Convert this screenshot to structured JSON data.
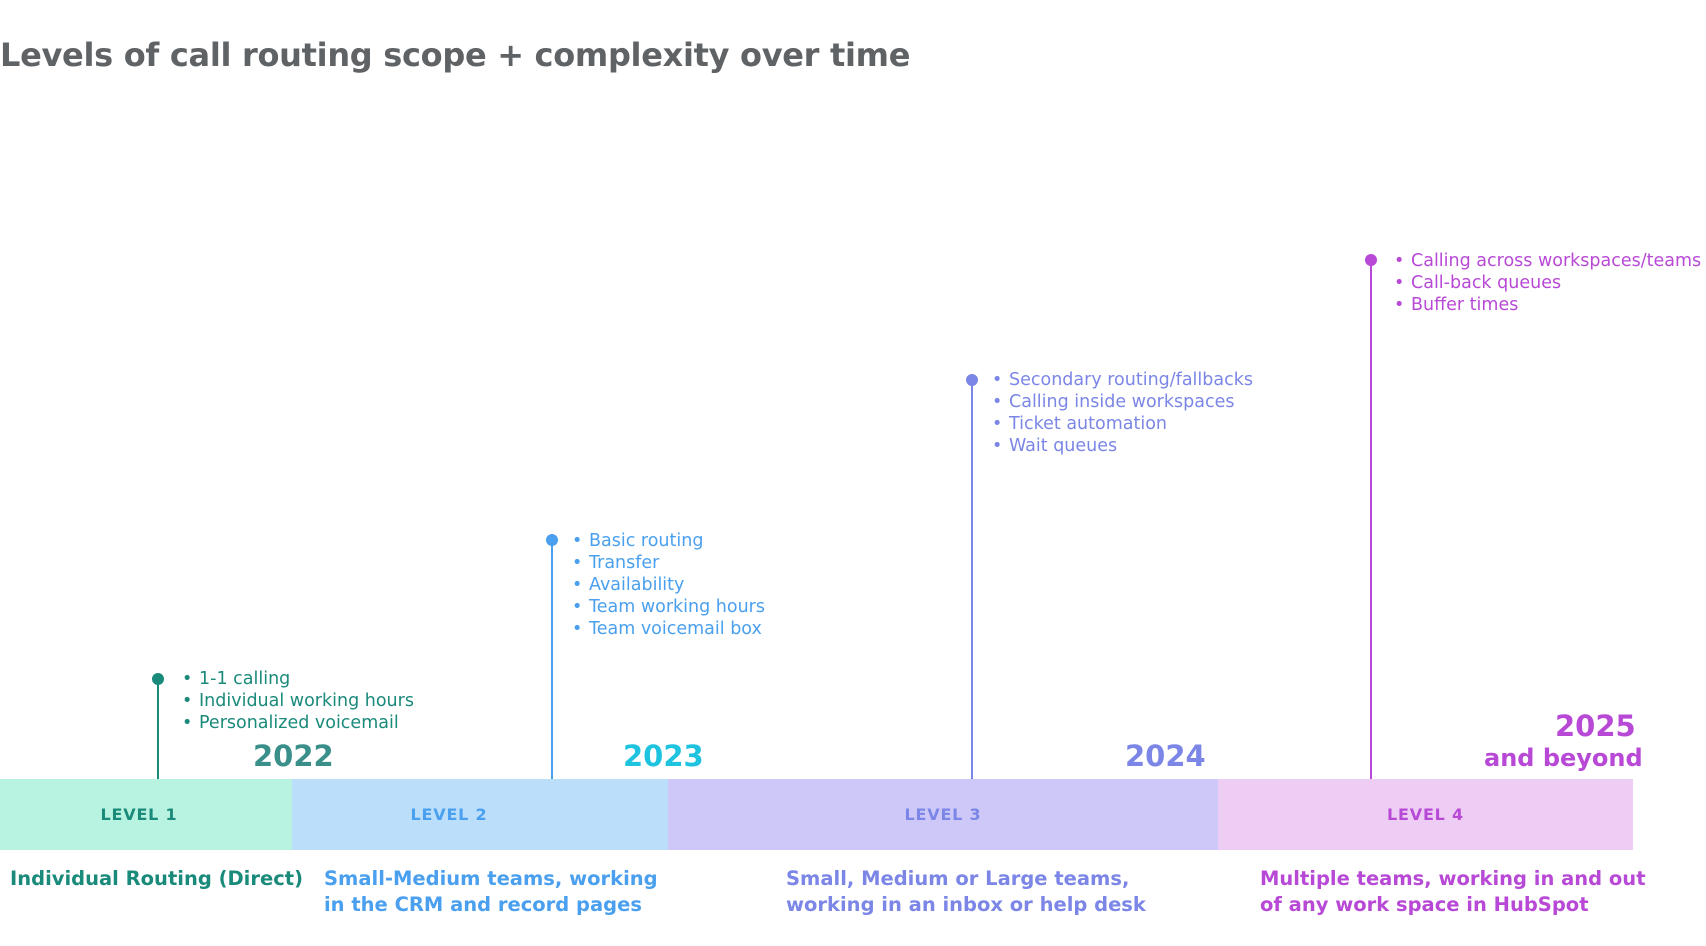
{
  "title": "Levels of call routing scope + complexity over time",
  "colors": {
    "level1": "#1a8a7a",
    "level2": "#4aa0ee",
    "level3": "#7b86e6",
    "level4": "#b849d6",
    "year2022": "#3a8f8a",
    "year2023": "#1ec3e0",
    "band1": "#b8f2e0",
    "band2": "#bbdefb",
    "band3": "#cec8f8",
    "band4": "#eecdf5"
  },
  "milestones": [
    {
      "features": [
        "1-1 calling",
        "Individual working hours",
        "Personalized voicemail"
      ]
    },
    {
      "features": [
        "Basic routing",
        "Transfer",
        "Availability",
        "Team working hours",
        "Team voicemail box"
      ]
    },
    {
      "features": [
        "Secondary routing/fallbacks",
        "Calling inside workspaces",
        "Ticket automation",
        "Wait queues"
      ]
    },
    {
      "features": [
        "Calling across workspaces/teams",
        "Call-back queues",
        "Buffer times"
      ]
    }
  ],
  "years": {
    "y2022": "2022",
    "y2023": "2023",
    "y2024": "2024",
    "y2025": "2025",
    "y2025_sub": "and beyond"
  },
  "levels": [
    {
      "label": "LEVEL 1",
      "description": [
        "Individual Routing (Direct)"
      ]
    },
    {
      "label": "LEVEL 2",
      "description": [
        "Small-Medium teams, working",
        "in the CRM and record pages"
      ]
    },
    {
      "label": "LEVEL 3",
      "description": [
        "Small, Medium or Large teams,",
        "working in an inbox or help desk"
      ]
    },
    {
      "label": "LEVEL 4",
      "description": [
        "Multiple teams, working in and out",
        "of any work space in HubSpot"
      ]
    }
  ]
}
